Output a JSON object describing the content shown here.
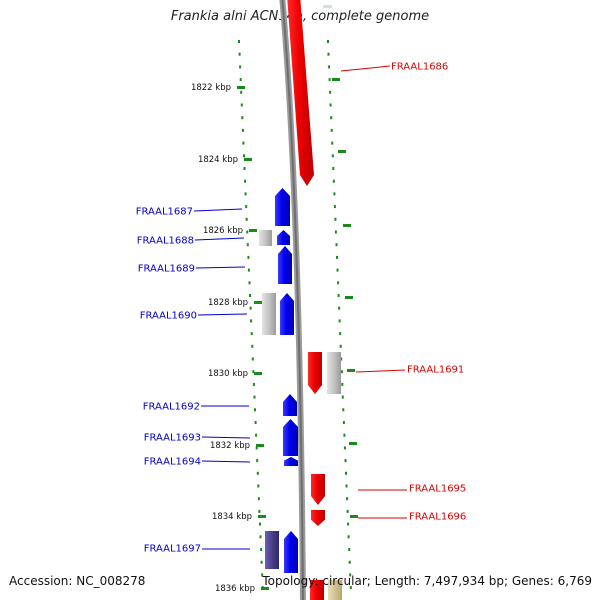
{
  "title": "Frankia alni ACN14a, complete genome",
  "footer": {
    "accession": "Accession: NC_008278",
    "stats": "Topology: circular; Length: 7,497,934 bp; Genes: 6,769"
  },
  "colors": {
    "forward_strand": "#ff0000",
    "reverse_strand": "#0000ff",
    "other_feature": "#b4b4b4",
    "rna_feature": "#4a3f8c",
    "tick": "#1a8a1a",
    "backbone": "#8c8c8c"
  },
  "scale": {
    "tick_labels": [
      "1822 kbp",
      "1824 kbp",
      "1826 kbp",
      "1828 kbp",
      "1830 kbp",
      "1832 kbp",
      "1834 kbp",
      "1836 kbp"
    ]
  },
  "genes": [
    {
      "label": "FRAAL1686",
      "strand": "forward"
    },
    {
      "label": "FRAAL1687",
      "strand": "reverse"
    },
    {
      "label": "FRAAL1688",
      "strand": "reverse"
    },
    {
      "label": "FRAAL1689",
      "strand": "reverse"
    },
    {
      "label": "FRAAL1690",
      "strand": "reverse"
    },
    {
      "label": "FRAAL1691",
      "strand": "forward"
    },
    {
      "label": "FRAAL1692",
      "strand": "reverse"
    },
    {
      "label": "FRAAL1693",
      "strand": "reverse"
    },
    {
      "label": "FRAAL1694",
      "strand": "reverse"
    },
    {
      "label": "FRAAL1695",
      "strand": "forward"
    },
    {
      "label": "FRAAL1696",
      "strand": "forward"
    },
    {
      "label": "FRAAL1697",
      "strand": "reverse"
    }
  ]
}
